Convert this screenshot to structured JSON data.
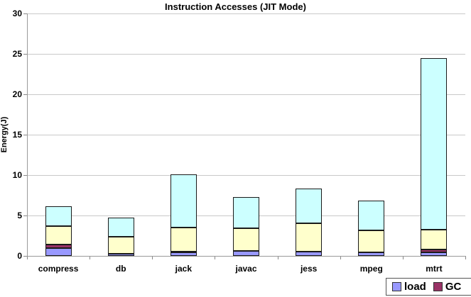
{
  "chart": {
    "title": "Instruction Accesses (JIT Mode)",
    "ylabel": "Energy(J)"
  },
  "chart_data": {
    "type": "bar",
    "stacked": true,
    "title": "Instruction Accesses (JIT Mode)",
    "xlabel": "",
    "ylabel": "Energy(J)",
    "ylim": [
      0,
      30
    ],
    "yticks": [
      0,
      5,
      10,
      15,
      20,
      25,
      30
    ],
    "grid": true,
    "categories": [
      "compress",
      "db",
      "jack",
      "javac",
      "jess",
      "mpeg",
      "mtrt"
    ],
    "series": [
      {
        "name": "load",
        "color": "#9999FF",
        "values": [
          0.95,
          0.3,
          0.4,
          0.6,
          0.55,
          0.4,
          0.45
        ]
      },
      {
        "name": "GC",
        "color": "#993366",
        "values": [
          0.45,
          0.0,
          0.1,
          0.0,
          0.0,
          0.0,
          0.3
        ]
      },
      {
        "name": "",
        "color": "#FFFFCC",
        "values": [
          2.3,
          2.1,
          3.0,
          2.8,
          3.45,
          2.75,
          2.5
        ]
      },
      {
        "name": "",
        "color": "#CCFFFF",
        "values": [
          2.45,
          2.35,
          6.6,
          3.9,
          4.35,
          3.7,
          21.25
        ]
      }
    ],
    "totals": [
      6.15,
      4.75,
      10.1,
      7.3,
      8.35,
      6.85,
      24.5
    ],
    "legend": {
      "position": "bottom-right",
      "clipped_by_image_edge": true,
      "entries": [
        "load",
        "GC"
      ]
    }
  },
  "colors": {
    "load": "#9999FF",
    "gc": "#993366",
    "series3": "#FFFFCC",
    "series4": "#CCFFFF",
    "gridline": "#c9c9c9",
    "axis": "#9a9a9a",
    "background": "#ffffff"
  }
}
